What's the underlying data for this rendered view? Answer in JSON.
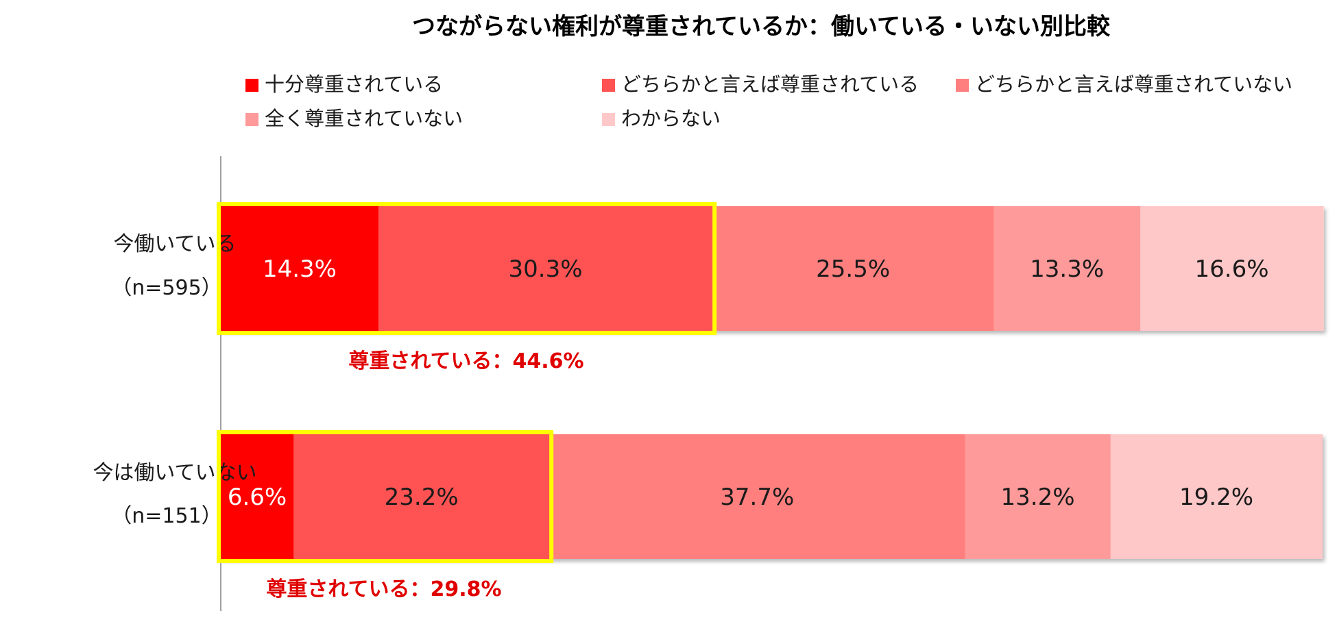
{
  "chart_data": {
    "type": "bar",
    "orientation": "horizontal",
    "stacked": true,
    "title": "つながらない権利が尊重されているか：働いている・いない別比較",
    "legend_position": "top",
    "categories": [
      {
        "label": "今働いている",
        "n": "（n=595）"
      },
      {
        "label": "今は働いていない",
        "n": "（n=151）"
      }
    ],
    "series": [
      {
        "name": "十分尊重されている",
        "color": "#ff0000",
        "text_color": "#ffffff",
        "values": [
          14.3,
          6.6
        ]
      },
      {
        "name": "どちらかと言えば尊重されている",
        "color": "#ff5252",
        "text_color": "#1a1a1a",
        "values": [
          30.3,
          23.2
        ]
      },
      {
        "name": "どちらかと言えば尊重されていない",
        "color": "#ff7f7f",
        "text_color": "#1a1a1a",
        "values": [
          25.5,
          37.7
        ]
      },
      {
        "name": "全く尊重されていない",
        "color": "#ff9a9a",
        "text_color": "#1a1a1a",
        "values": [
          13.3,
          13.2
        ]
      },
      {
        "name": "わからない",
        "color": "#ffc8c8",
        "text_color": "#1a1a1a",
        "values": [
          16.6,
          19.2
        ]
      }
    ],
    "value_labels": [
      [
        "14.3%",
        "30.3%",
        "25.5%",
        "13.3%",
        "16.6%"
      ],
      [
        "6.6%",
        "23.2%",
        "37.7%",
        "13.2%",
        "19.2%"
      ]
    ],
    "highlight": {
      "color": "#ffff00",
      "series_count": 2,
      "labels": [
        "尊重されている：44.6%",
        "尊重されている：29.8%"
      ]
    },
    "xlim": [
      0,
      100
    ],
    "grid": false
  }
}
